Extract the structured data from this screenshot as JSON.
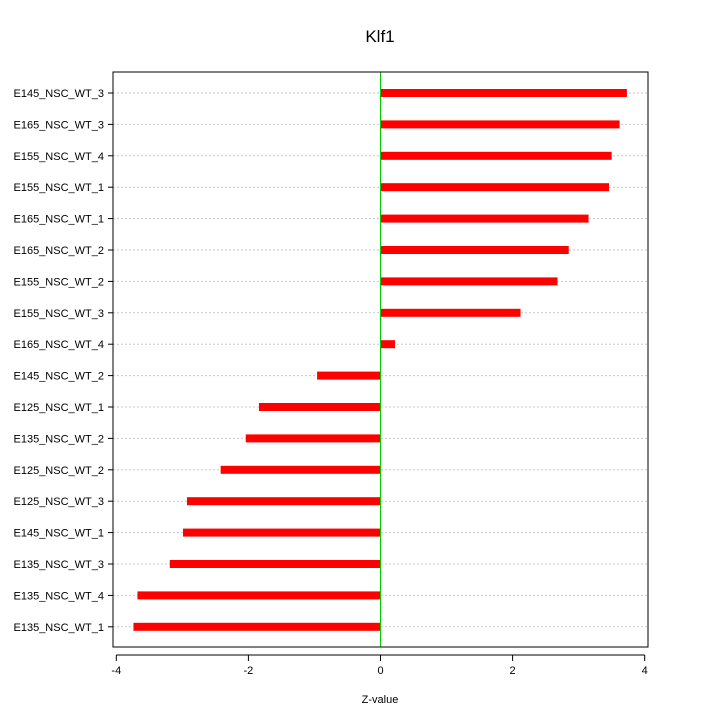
{
  "chart_data": {
    "type": "bar",
    "orientation": "horizontal",
    "title": "Klf1",
    "xlabel": "Z-value",
    "ylabel": "",
    "xlim": [
      -4.05,
      4.05
    ],
    "xticks": [
      -4,
      -2,
      0,
      2,
      4
    ],
    "xtick_labels": [
      "-4",
      "-2",
      "0",
      "2",
      "4"
    ],
    "grid": "horizontal dotted lines at each category",
    "zero_line_color": "#00cc00",
    "bar_color": "#ff0000",
    "categories": [
      "E145_NSC_WT_3",
      "E165_NSC_WT_3",
      "E155_NSC_WT_4",
      "E155_NSC_WT_1",
      "E165_NSC_WT_1",
      "E165_NSC_WT_2",
      "E155_NSC_WT_2",
      "E155_NSC_WT_3",
      "E165_NSC_WT_4",
      "E145_NSC_WT_2",
      "E125_NSC_WT_1",
      "E135_NSC_WT_2",
      "E125_NSC_WT_2",
      "E125_NSC_WT_3",
      "E145_NSC_WT_1",
      "E135_NSC_WT_3",
      "E135_NSC_WT_4",
      "E135_NSC_WT_1"
    ],
    "values": [
      3.73,
      3.62,
      3.5,
      3.46,
      3.15,
      2.85,
      2.68,
      2.12,
      0.22,
      -0.96,
      -1.84,
      -2.04,
      -2.42,
      -2.93,
      -2.99,
      -3.19,
      -3.68,
      -3.74
    ]
  }
}
